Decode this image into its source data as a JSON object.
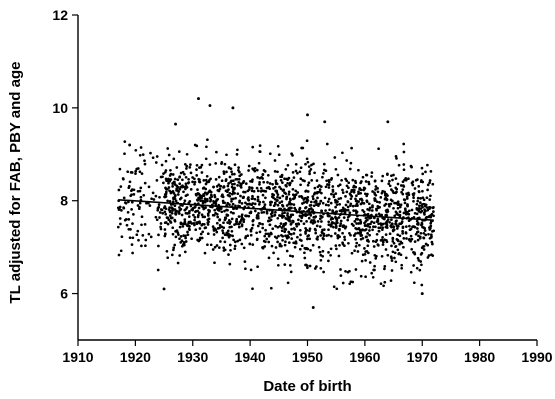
{
  "chart_data": {
    "type": "scatter",
    "xlabel": "Date of birth",
    "ylabel": "TL adjusted for FAB, PBY and age",
    "xlim": [
      1910,
      1990
    ],
    "ylim": [
      5,
      12
    ],
    "x_ticks": [
      1910,
      1920,
      1930,
      1940,
      1950,
      1960,
      1970,
      1980,
      1990
    ],
    "y_ticks": [
      6,
      8,
      10,
      12
    ],
    "grid": false,
    "legend": "none",
    "point_color": "#000000",
    "series": [
      {
        "x_range": [
          1917,
          1972
        ],
        "center_y": 7.85,
        "spread_y": 0.55,
        "points_approx": 2000,
        "outliers": [
          {
            "x": 1931,
            "y": 10.2
          },
          {
            "x": 1933,
            "y": 10.05
          },
          {
            "x": 1937,
            "y": 10.0
          },
          {
            "x": 1950,
            "y": 9.85
          },
          {
            "x": 1953,
            "y": 9.7
          },
          {
            "x": 1964,
            "y": 9.7
          },
          {
            "x": 1919,
            "y": 9.2
          },
          {
            "x": 1927,
            "y": 9.65
          },
          {
            "x": 1951,
            "y": 5.7
          },
          {
            "x": 1925,
            "y": 6.1
          },
          {
            "x": 1970,
            "y": 6.0
          }
        ]
      }
    ],
    "trendline": {
      "x": [
        1917,
        1972
      ],
      "y": [
        8.02,
        7.58
      ]
    }
  }
}
